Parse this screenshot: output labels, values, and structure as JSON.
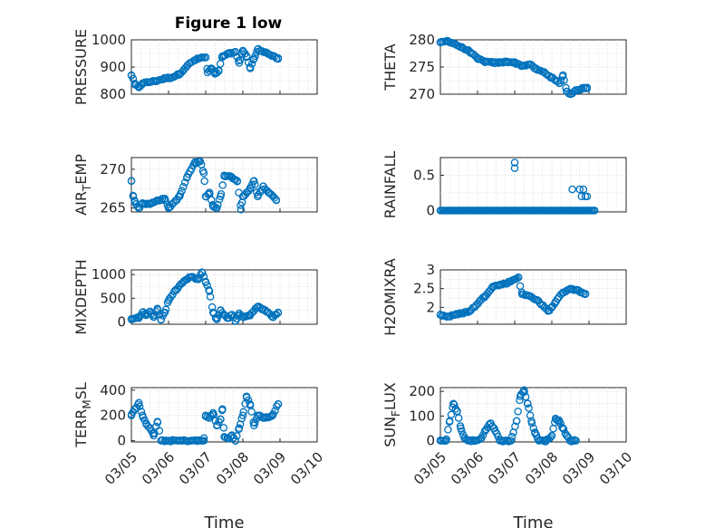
{
  "figure": {
    "title": "Figure 1 low",
    "marker_color": "#0072BD",
    "grid": true
  },
  "x_axis": {
    "ticks": [
      5,
      6,
      7,
      8,
      9,
      10
    ],
    "tick_labels": [
      "03/05",
      "03/06",
      "03/07",
      "03/08",
      "03/09",
      "03/10"
    ],
    "range": [
      5,
      10
    ],
    "tick_label_rotation_deg": -45,
    "xlabel": "Time"
  },
  "chart_data": [
    {
      "type": "scatter",
      "ylabel_main": "PRESSURE",
      "ylim": [
        800,
        1000
      ],
      "yticks": [
        800,
        900,
        1000
      ],
      "anchors": [
        [
          5.0,
          870
        ],
        [
          5.1,
          835
        ],
        [
          5.2,
          825
        ],
        [
          5.3,
          840
        ],
        [
          5.5,
          845
        ],
        [
          5.7,
          850
        ],
        [
          5.9,
          858
        ],
        [
          6.1,
          862
        ],
        [
          6.3,
          875
        ],
        [
          6.5,
          905
        ],
        [
          6.7,
          925
        ],
        [
          6.9,
          935
        ],
        [
          7.0,
          935
        ],
        [
          7.05,
          880
        ],
        [
          7.15,
          895
        ],
        [
          7.25,
          875
        ],
        [
          7.35,
          885
        ],
        [
          7.45,
          940
        ],
        [
          7.6,
          948
        ],
        [
          7.8,
          955
        ],
        [
          7.9,
          915
        ],
        [
          8.0,
          960
        ],
        [
          8.1,
          940
        ],
        [
          8.2,
          895
        ],
        [
          8.3,
          930
        ],
        [
          8.4,
          965
        ],
        [
          8.6,
          955
        ],
        [
          8.8,
          940
        ],
        [
          8.95,
          930
        ]
      ]
    },
    {
      "type": "scatter",
      "ylabel_main": "THETA",
      "ylim": [
        270,
        280
      ],
      "yticks": [
        270,
        275,
        280
      ],
      "anchors": [
        [
          5.0,
          279.5
        ],
        [
          5.2,
          279.8
        ],
        [
          5.4,
          279.2
        ],
        [
          5.6,
          278.5
        ],
        [
          5.8,
          277.8
        ],
        [
          6.0,
          276.5
        ],
        [
          6.2,
          276.0
        ],
        [
          6.4,
          275.8
        ],
        [
          6.6,
          275.8
        ],
        [
          6.8,
          276.0
        ],
        [
          7.0,
          275.8
        ],
        [
          7.2,
          275.2
        ],
        [
          7.4,
          275.5
        ],
        [
          7.6,
          274.5
        ],
        [
          7.8,
          274.0
        ],
        [
          8.0,
          273.0
        ],
        [
          8.1,
          272.5
        ],
        [
          8.2,
          272.0
        ],
        [
          8.3,
          273.5
        ],
        [
          8.4,
          270.5
        ],
        [
          8.5,
          270.0
        ],
        [
          8.6,
          270.5
        ],
        [
          8.8,
          271.0
        ],
        [
          8.95,
          271.2
        ]
      ]
    },
    {
      "type": "scatter",
      "ylabel_main": "AIR",
      "ylabel_sub": "T",
      "ylabel_tail": "EMP",
      "ylim": [
        264.5,
        271.5
      ],
      "yticks": [
        265,
        270
      ],
      "anchors": [
        [
          5.0,
          268.5
        ],
        [
          5.05,
          266.5
        ],
        [
          5.1,
          265.8
        ],
        [
          5.2,
          265.0
        ],
        [
          5.3,
          265.6
        ],
        [
          5.5,
          265.5
        ],
        [
          5.7,
          266.0
        ],
        [
          5.9,
          266.2
        ],
        [
          6.0,
          265.0
        ],
        [
          6.1,
          265.5
        ],
        [
          6.3,
          266.5
        ],
        [
          6.5,
          269.0
        ],
        [
          6.7,
          270.8
        ],
        [
          6.85,
          271.0
        ],
        [
          6.95,
          269.5
        ],
        [
          7.0,
          266.5
        ],
        [
          7.1,
          267.0
        ],
        [
          7.2,
          265.2
        ],
        [
          7.3,
          265.0
        ],
        [
          7.4,
          266.5
        ],
        [
          7.5,
          269.2
        ],
        [
          7.7,
          269.0
        ],
        [
          7.85,
          268.5
        ],
        [
          7.95,
          264.8
        ],
        [
          8.0,
          266.5
        ],
        [
          8.1,
          267.0
        ],
        [
          8.2,
          267.5
        ],
        [
          8.3,
          268.5
        ],
        [
          8.4,
          266.5
        ],
        [
          8.55,
          267.8
        ],
        [
          8.7,
          267.0
        ],
        [
          8.9,
          266.0
        ]
      ]
    },
    {
      "type": "scatter",
      "ylabel_main": "RAINFALL",
      "ylim": [
        -0.02,
        0.75
      ],
      "yticks": [
        0,
        0.5
      ],
      "ytick_labels": [
        "0",
        "0.5"
      ],
      "zero_span": [
        5.0,
        9.15
      ],
      "spikes": [
        [
          7.0,
          0.6
        ],
        [
          7.0,
          0.68
        ],
        [
          8.55,
          0.3
        ],
        [
          8.75,
          0.3
        ],
        [
          8.8,
          0.2
        ],
        [
          8.85,
          0.3
        ],
        [
          8.9,
          0.2
        ],
        [
          8.95,
          0.2
        ]
      ]
    },
    {
      "type": "scatter",
      "ylabel_main": "MIXDEPTH",
      "ylim": [
        -50,
        1100
      ],
      "yticks": [
        0,
        500,
        1000
      ],
      "anchors": [
        [
          5.0,
          60
        ],
        [
          5.2,
          80
        ],
        [
          5.3,
          200
        ],
        [
          5.4,
          150
        ],
        [
          5.5,
          220
        ],
        [
          5.6,
          100
        ],
        [
          5.7,
          280
        ],
        [
          5.8,
          50
        ],
        [
          5.9,
          200
        ],
        [
          6.0,
          450
        ],
        [
          6.2,
          680
        ],
        [
          6.4,
          850
        ],
        [
          6.6,
          950
        ],
        [
          6.8,
          900
        ],
        [
          6.9,
          1050
        ],
        [
          7.0,
          850
        ],
        [
          7.1,
          650
        ],
        [
          7.2,
          200
        ],
        [
          7.3,
          50
        ],
        [
          7.4,
          240
        ],
        [
          7.5,
          150
        ],
        [
          7.6,
          80
        ],
        [
          7.7,
          150
        ],
        [
          7.8,
          20
        ],
        [
          7.9,
          180
        ],
        [
          8.0,
          100
        ],
        [
          8.2,
          150
        ],
        [
          8.4,
          320
        ],
        [
          8.6,
          250
        ],
        [
          8.8,
          100
        ],
        [
          8.95,
          200
        ]
      ]
    },
    {
      "type": "scatter",
      "ylabel_main": "H2OMIXRA",
      "ylim": [
        1.55,
        3.0
      ],
      "yticks": [
        2,
        2.5,
        3
      ],
      "ytick_labels": [
        "2",
        "2.5",
        "3"
      ],
      "anchors": [
        [
          5.0,
          1.8
        ],
        [
          5.2,
          1.75
        ],
        [
          5.4,
          1.8
        ],
        [
          5.6,
          1.85
        ],
        [
          5.8,
          1.9
        ],
        [
          6.0,
          2.1
        ],
        [
          6.2,
          2.3
        ],
        [
          6.4,
          2.55
        ],
        [
          6.6,
          2.6
        ],
        [
          6.8,
          2.65
        ],
        [
          7.0,
          2.75
        ],
        [
          7.1,
          2.8
        ],
        [
          7.2,
          2.35
        ],
        [
          7.4,
          2.3
        ],
        [
          7.6,
          2.2
        ],
        [
          7.8,
          2.0
        ],
        [
          7.9,
          1.9
        ],
        [
          8.0,
          2.0
        ],
        [
          8.1,
          2.15
        ],
        [
          8.3,
          2.4
        ],
        [
          8.5,
          2.5
        ],
        [
          8.7,
          2.45
        ],
        [
          8.9,
          2.35
        ]
      ]
    },
    {
      "type": "scatter",
      "ylabel_main": "TERR",
      "ylabel_sub": "M",
      "ylabel_tail": "SL",
      "ylim": [
        -10,
        420
      ],
      "yticks": [
        0,
        200,
        400
      ],
      "anchors": [
        [
          5.0,
          200
        ],
        [
          5.1,
          250
        ],
        [
          5.2,
          300
        ],
        [
          5.3,
          200
        ],
        [
          5.4,
          130
        ],
        [
          5.5,
          100
        ],
        [
          5.6,
          40
        ],
        [
          5.7,
          150
        ],
        [
          5.8,
          0
        ],
        [
          6.0,
          0
        ],
        [
          6.3,
          0
        ],
        [
          6.6,
          0
        ],
        [
          6.95,
          0
        ],
        [
          7.0,
          200
        ],
        [
          7.1,
          180
        ],
        [
          7.2,
          220
        ],
        [
          7.3,
          120
        ],
        [
          7.4,
          170
        ],
        [
          7.45,
          250
        ],
        [
          7.5,
          30
        ],
        [
          7.6,
          20
        ],
        [
          7.7,
          40
        ],
        [
          7.8,
          0
        ],
        [
          7.9,
          100
        ],
        [
          8.0,
          200
        ],
        [
          8.1,
          350
        ],
        [
          8.2,
          280
        ],
        [
          8.3,
          120
        ],
        [
          8.4,
          200
        ],
        [
          8.6,
          180
        ],
        [
          8.8,
          200
        ],
        [
          8.95,
          290
        ]
      ]
    },
    {
      "type": "scatter",
      "ylabel_main": "SUN",
      "ylabel_sub": "F",
      "ylabel_tail": "LUX",
      "ylim": [
        -5,
        215
      ],
      "yticks": [
        0,
        100,
        200
      ],
      "anchors": [
        [
          5.0,
          0
        ],
        [
          5.15,
          0
        ],
        [
          5.25,
          80
        ],
        [
          5.35,
          150
        ],
        [
          5.45,
          120
        ],
        [
          5.55,
          50
        ],
        [
          5.65,
          10
        ],
        [
          5.75,
          0
        ],
        [
          5.95,
          0
        ],
        [
          6.1,
          10
        ],
        [
          6.2,
          40
        ],
        [
          6.35,
          70
        ],
        [
          6.45,
          50
        ],
        [
          6.6,
          0
        ],
        [
          6.9,
          0
        ],
        [
          7.05,
          80
        ],
        [
          7.15,
          180
        ],
        [
          7.25,
          205
        ],
        [
          7.35,
          150
        ],
        [
          7.45,
          80
        ],
        [
          7.55,
          30
        ],
        [
          7.65,
          0
        ],
        [
          7.85,
          0
        ],
        [
          8.0,
          20
        ],
        [
          8.1,
          90
        ],
        [
          8.2,
          80
        ],
        [
          8.3,
          50
        ],
        [
          8.4,
          20
        ],
        [
          8.5,
          0
        ],
        [
          8.65,
          0
        ]
      ]
    }
  ]
}
